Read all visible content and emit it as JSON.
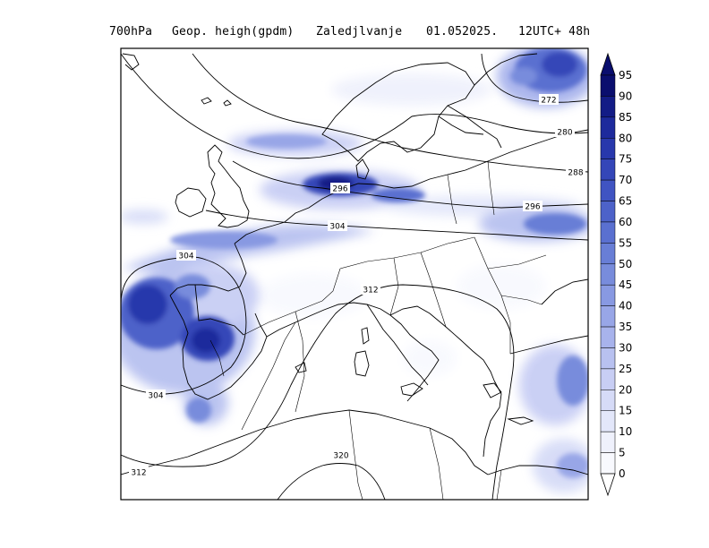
{
  "header": {
    "level": "700hPa",
    "field": "Geop. heigh(gpdm)",
    "source": "Zaledjlvanje",
    "date": "01.052025.",
    "time": "12UTC+ 48h"
  },
  "map": {
    "contours": [
      {
        "value": 272,
        "label": "272"
      },
      {
        "value": 280,
        "label": "280"
      },
      {
        "value": 288,
        "label": "288"
      },
      {
        "value": 296,
        "label": "296"
      },
      {
        "value": 304,
        "label": "304"
      },
      {
        "value": 312,
        "label": "312"
      },
      {
        "value": 320,
        "label": "320"
      }
    ],
    "contour_labels": [
      "272",
      "280",
      "288",
      "296",
      "296",
      "304",
      "304",
      "304",
      "312",
      "312",
      "320"
    ]
  },
  "colorbar": {
    "levels": [
      "95",
      "90",
      "85",
      "80",
      "75",
      "70",
      "65",
      "60",
      "55",
      "50",
      "45",
      "40",
      "35",
      "30",
      "25",
      "20",
      "15",
      "10",
      "5",
      "0"
    ],
    "colors": [
      "#0a0e6e",
      "#131c86",
      "#1d2a9c",
      "#2838ac",
      "#3446b8",
      "#4054c2",
      "#4d62c9",
      "#5a70d0",
      "#687ed6",
      "#788cdc",
      "#8899e2",
      "#98a6e7",
      "#a8b3ec",
      "#b8c1f0",
      "#c8cef4",
      "#d6dbf7",
      "#e3e7fa",
      "#eff1fc",
      "#f8f9fe"
    ]
  }
}
